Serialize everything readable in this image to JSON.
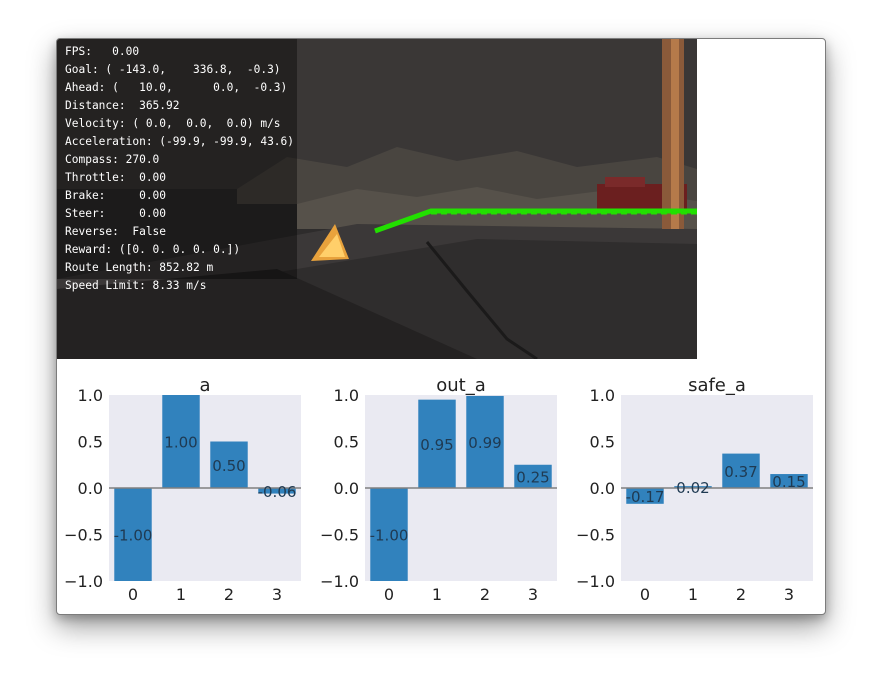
{
  "hud": {
    "colors": {
      "panel": "rgba(0,0,0,0.38)",
      "text": "#ffffff",
      "route": "#22e000"
    },
    "lines": [
      "FPS:   0.00",
      "Goal: ( -143.0,    336.8,  -0.3)",
      "Ahead: (   10.0,      0.0,  -0.3)",
      "Distance:  365.92",
      "Velocity: ( 0.0,  0.0,  0.0) m/s",
      "Acceleration: (-99.9, -99.9, 43.6)",
      "Compass: 270.0",
      "Throttle:  0.00",
      "Brake:     0.00",
      "Steer:     0.00",
      "Reverse:  False",
      "Reward: ([0. 0. 0. 0. 0.])",
      "Route Length: 852.82 m",
      "Speed Limit: 8.33 m/s"
    ]
  },
  "chart_data": [
    {
      "type": "bar",
      "title": "a",
      "categories": [
        "0",
        "1",
        "2",
        "3"
      ],
      "values": [
        -1.0,
        1.0,
        0.5,
        -0.06
      ],
      "value_labels": [
        "-1.00",
        "1.00",
        "0.50",
        "-0.06"
      ],
      "yticks": [
        "1.0",
        "0.5",
        "0.0",
        "−0.5",
        "−1.0"
      ],
      "ylim": [
        -1.0,
        1.0
      ],
      "bar_color": "#3182bd",
      "background": "#eaeaf2",
      "zero_line": true
    },
    {
      "type": "bar",
      "title": "out_a",
      "categories": [
        "0",
        "1",
        "2",
        "3"
      ],
      "values": [
        -1.0,
        0.95,
        0.99,
        0.25
      ],
      "value_labels": [
        "-1.00",
        "0.95",
        "0.99",
        "0.25"
      ],
      "yticks": [
        "1.0",
        "0.5",
        "0.0",
        "−0.5",
        "−1.0"
      ],
      "ylim": [
        -1.0,
        1.0
      ],
      "bar_color": "#3182bd",
      "background": "#eaeaf2",
      "zero_line": true
    },
    {
      "type": "bar",
      "title": "safe_a",
      "categories": [
        "0",
        "1",
        "2",
        "3"
      ],
      "values": [
        -0.17,
        0.02,
        0.37,
        0.15
      ],
      "value_labels": [
        "-0.17",
        "0.02",
        "0.37",
        "0.15"
      ],
      "yticks": [
        "1.0",
        "0.5",
        "0.0",
        "−0.5",
        "−1.0"
      ],
      "ylim": [
        -1.0,
        1.0
      ],
      "bar_color": "#3182bd",
      "background": "#eaeaf2",
      "zero_line": true
    }
  ]
}
